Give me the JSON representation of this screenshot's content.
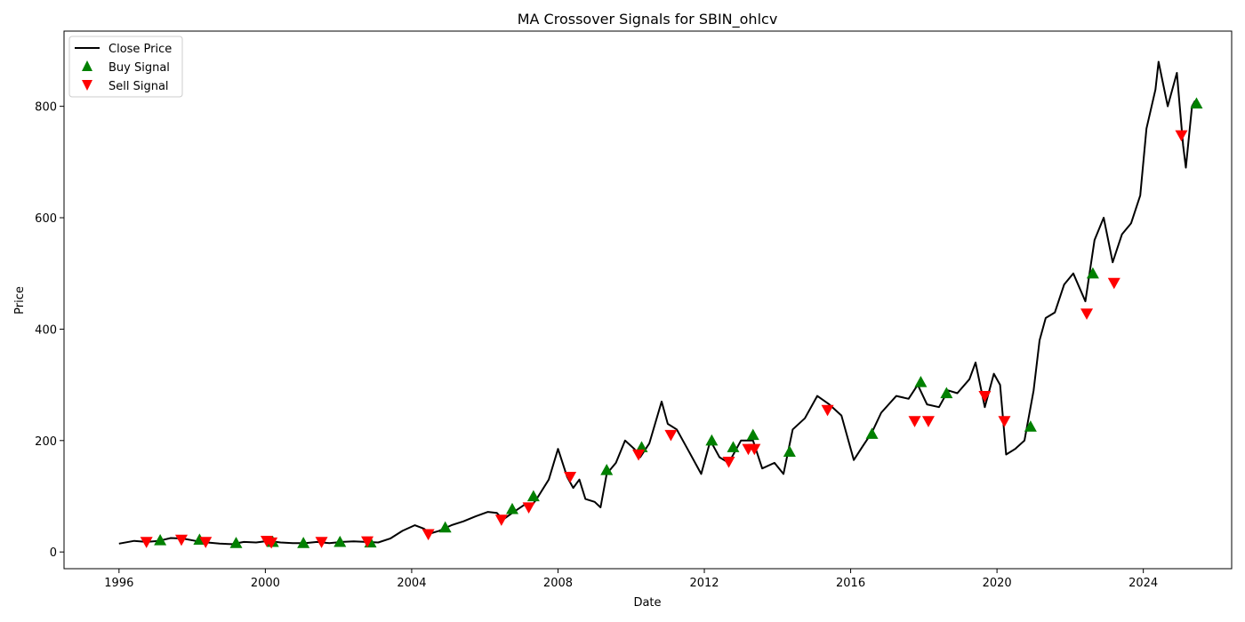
{
  "chart_data": {
    "type": "line",
    "title": "MA Crossover Signals for SBIN_ohlcv",
    "xlabel": "Date",
    "ylabel": "Price",
    "xlim": [
      "1994-07-01",
      "2026-06-01"
    ],
    "ylim": [
      -30,
      935
    ],
    "x_ticks": [
      "1996",
      "2000",
      "2004",
      "2008",
      "2012",
      "2016",
      "2020",
      "2024"
    ],
    "y_ticks": [
      0,
      200,
      400,
      600,
      800
    ],
    "grid": false,
    "legend_position": "top-left",
    "legend": [
      "Close Price",
      "Buy Signal",
      "Sell Signal"
    ],
    "colors": {
      "close": "#000000",
      "buy": "#008000",
      "sell": "#ff0000"
    },
    "series": [
      {
        "name": "Close Price",
        "type": "line",
        "points": [
          [
            "1996-01-01",
            15
          ],
          [
            "1996-06-01",
            20
          ],
          [
            "1996-10-01",
            18
          ],
          [
            "1997-02-01",
            20
          ],
          [
            "1997-06-01",
            25
          ],
          [
            "1997-10-01",
            24
          ],
          [
            "1998-02-01",
            20
          ],
          [
            "1998-06-01",
            17
          ],
          [
            "1998-10-01",
            15
          ],
          [
            "1999-02-01",
            14
          ],
          [
            "1999-06-01",
            18
          ],
          [
            "1999-10-01",
            17
          ],
          [
            "2000-02-01",
            20
          ],
          [
            "2000-06-01",
            17
          ],
          [
            "2000-10-01",
            16
          ],
          [
            "2001-02-01",
            16
          ],
          [
            "2001-06-01",
            18
          ],
          [
            "2001-10-01",
            16
          ],
          [
            "2002-02-01",
            18
          ],
          [
            "2002-06-01",
            19
          ],
          [
            "2002-10-01",
            18
          ],
          [
            "2003-02-01",
            17
          ],
          [
            "2003-06-01",
            24
          ],
          [
            "2003-10-01",
            38
          ],
          [
            "2004-02-01",
            48
          ],
          [
            "2004-05-01",
            42
          ],
          [
            "2004-07-01",
            33
          ],
          [
            "2004-10-01",
            38
          ],
          [
            "2005-02-01",
            48
          ],
          [
            "2005-06-01",
            55
          ],
          [
            "2005-10-01",
            64
          ],
          [
            "2006-02-01",
            72
          ],
          [
            "2006-05-01",
            70
          ],
          [
            "2006-07-01",
            58
          ],
          [
            "2006-10-01",
            70
          ],
          [
            "2007-02-01",
            85
          ],
          [
            "2007-04-01",
            80
          ],
          [
            "2007-06-01",
            95
          ],
          [
            "2007-10-01",
            130
          ],
          [
            "2008-01-01",
            185
          ],
          [
            "2008-04-01",
            135
          ],
          [
            "2008-06-01",
            115
          ],
          [
            "2008-08-01",
            130
          ],
          [
            "2008-10-01",
            95
          ],
          [
            "2009-01-01",
            90
          ],
          [
            "2009-03-01",
            80
          ],
          [
            "2009-05-01",
            140
          ],
          [
            "2009-08-01",
            160
          ],
          [
            "2009-11-01",
            200
          ],
          [
            "2010-02-01",
            185
          ],
          [
            "2010-04-01",
            170
          ],
          [
            "2010-07-01",
            195
          ],
          [
            "2010-11-01",
            270
          ],
          [
            "2011-01-01",
            230
          ],
          [
            "2011-04-01",
            220
          ],
          [
            "2011-08-01",
            180
          ],
          [
            "2011-12-01",
            140
          ],
          [
            "2012-03-01",
            200
          ],
          [
            "2012-06-01",
            170
          ],
          [
            "2012-09-01",
            160
          ],
          [
            "2013-01-01",
            200
          ],
          [
            "2013-05-01",
            200
          ],
          [
            "2013-08-01",
            150
          ],
          [
            "2013-12-01",
            160
          ],
          [
            "2014-03-01",
            140
          ],
          [
            "2014-06-01",
            220
          ],
          [
            "2014-10-01",
            240
          ],
          [
            "2015-02-01",
            280
          ],
          [
            "2015-06-01",
            265
          ],
          [
            "2015-10-01",
            245
          ],
          [
            "2016-02-01",
            165
          ],
          [
            "2016-05-01",
            190
          ],
          [
            "2016-08-01",
            215
          ],
          [
            "2016-11-01",
            250
          ],
          [
            "2017-04-01",
            280
          ],
          [
            "2017-08-01",
            275
          ],
          [
            "2017-11-01",
            300
          ],
          [
            "2018-02-01",
            265
          ],
          [
            "2018-06-01",
            260
          ],
          [
            "2018-09-01",
            290
          ],
          [
            "2018-12-01",
            285
          ],
          [
            "2019-04-01",
            310
          ],
          [
            "2019-06-01",
            340
          ],
          [
            "2019-09-01",
            260
          ],
          [
            "2019-12-01",
            320
          ],
          [
            "2020-02-01",
            300
          ],
          [
            "2020-04-01",
            175
          ],
          [
            "2020-07-01",
            185
          ],
          [
            "2020-10-01",
            200
          ],
          [
            "2021-01-01",
            290
          ],
          [
            "2021-03-01",
            380
          ],
          [
            "2021-05-01",
            420
          ],
          [
            "2021-08-01",
            430
          ],
          [
            "2021-11-01",
            480
          ],
          [
            "2022-02-01",
            500
          ],
          [
            "2022-06-01",
            450
          ],
          [
            "2022-09-01",
            560
          ],
          [
            "2022-12-01",
            600
          ],
          [
            "2023-03-01",
            520
          ],
          [
            "2023-06-01",
            570
          ],
          [
            "2023-09-01",
            590
          ],
          [
            "2023-12-01",
            640
          ],
          [
            "2024-02-01",
            760
          ],
          [
            "2024-05-01",
            830
          ],
          [
            "2024-06-01",
            880
          ],
          [
            "2024-09-01",
            800
          ],
          [
            "2024-12-01",
            860
          ],
          [
            "2025-02-01",
            730
          ],
          [
            "2025-03-01",
            690
          ],
          [
            "2025-05-01",
            800
          ],
          [
            "2025-06-01",
            810
          ]
        ]
      },
      {
        "name": "Buy Signal",
        "type": "scatter",
        "marker": "triangle-up",
        "points": [
          [
            "1997-02-15",
            21
          ],
          [
            "1998-03-15",
            22
          ],
          [
            "1999-03-15",
            16
          ],
          [
            "2000-03-15",
            18
          ],
          [
            "2001-01-15",
            16
          ],
          [
            "2002-01-15",
            18
          ],
          [
            "2002-11-15",
            17
          ],
          [
            "2004-12-01",
            44
          ],
          [
            "2006-10-01",
            77
          ],
          [
            "2007-05-01",
            100
          ],
          [
            "2009-05-01",
            147
          ],
          [
            "2010-04-15",
            188
          ],
          [
            "2012-03-15",
            200
          ],
          [
            "2012-10-15",
            188
          ],
          [
            "2013-05-01",
            210
          ],
          [
            "2014-05-01",
            180
          ],
          [
            "2016-08-01",
            212
          ],
          [
            "2017-12-01",
            305
          ],
          [
            "2018-08-15",
            285
          ],
          [
            "2020-12-01",
            225
          ],
          [
            "2022-08-15",
            500
          ],
          [
            "2025-06-15",
            805
          ]
        ]
      },
      {
        "name": "Sell Signal",
        "type": "scatter",
        "marker": "triangle-down",
        "points": [
          [
            "1996-10-01",
            18
          ],
          [
            "1997-09-15",
            22
          ],
          [
            "1998-05-15",
            18
          ],
          [
            "2000-01-15",
            20
          ],
          [
            "2000-03-01",
            17
          ],
          [
            "2001-07-15",
            18
          ],
          [
            "2002-10-15",
            19
          ],
          [
            "2004-06-15",
            32
          ],
          [
            "2006-06-15",
            58
          ],
          [
            "2007-03-15",
            80
          ],
          [
            "2008-05-01",
            135
          ],
          [
            "2010-03-15",
            175
          ],
          [
            "2011-02-01",
            210
          ],
          [
            "2012-09-01",
            162
          ],
          [
            "2013-03-15",
            185
          ],
          [
            "2013-05-15",
            185
          ],
          [
            "2015-05-15",
            255
          ],
          [
            "2017-10-01",
            235
          ],
          [
            "2018-02-15",
            235
          ],
          [
            "2019-09-01",
            280
          ],
          [
            "2020-03-15",
            235
          ],
          [
            "2022-06-15",
            428
          ],
          [
            "2023-03-15",
            483
          ],
          [
            "2025-01-15",
            748
          ]
        ]
      }
    ]
  }
}
